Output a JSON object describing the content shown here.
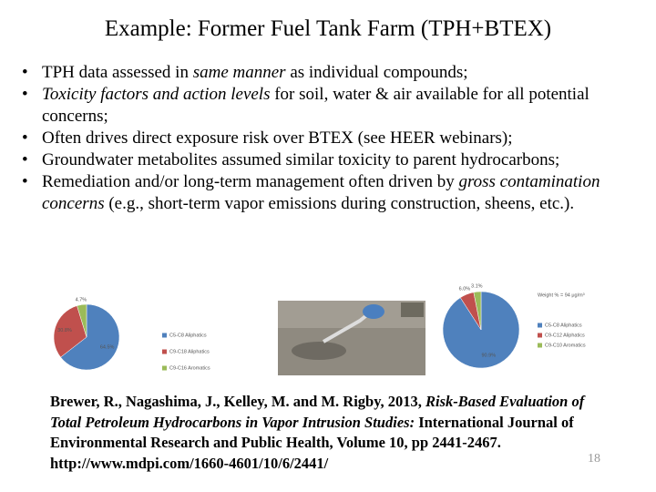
{
  "title": "Example: Former Fuel Tank Farm (TPH+BTEX)",
  "bullets": [
    [
      {
        "text": "TPH data assessed in ",
        "italic": false
      },
      {
        "text": "same manner",
        "italic": true
      },
      {
        "text": " as individual compounds;",
        "italic": false
      }
    ],
    [
      {
        "text": "Toxicity factors and action levels",
        "italic": true
      },
      {
        "text": " for soil, water & air available for all potential concerns;",
        "italic": false
      }
    ],
    [
      {
        "text": "Often drives direct exposure risk over BTEX (see HEER webinars);",
        "italic": false
      }
    ],
    [
      {
        "text": "Groundwater metabolites assumed similar toxicity to parent hydrocarbons;",
        "italic": false
      }
    ],
    [
      {
        "text": "Remediation and/or long-term management often driven by ",
        "italic": false
      },
      {
        "text": "gross contamination concerns",
        "italic": true
      },
      {
        "text": " (e.g., short-term vapor emissions during construction, sheens, etc.).",
        "italic": false
      }
    ]
  ],
  "pies": [
    {
      "values": [
        64.5,
        30.8,
        4.7
      ],
      "value_labels": [
        "64.5%",
        "30.8%",
        "4.7%"
      ],
      "legend": [
        "C5-C8 Aliphatics",
        "C9-C18 Aliphatics",
        "C9-C16 Aromatics"
      ],
      "colors": [
        "#4f81bd",
        "#c0504d",
        "#9bbb59"
      ]
    },
    {
      "title": "Weight % = 94 μg/m³",
      "values": [
        90.9,
        6.0,
        3.1
      ],
      "value_labels": [
        "90.9%",
        "6.0%",
        "3.1%"
      ],
      "legend": [
        "C5-C8 Aliphatics",
        "C9-C12 Aliphatics",
        "C9-C10 Aromatics"
      ],
      "colors": [
        "#4f81bd",
        "#c0504d",
        "#9bbb59"
      ]
    }
  ],
  "reference": [
    {
      "text": "Brewer, R., Nagashima, J., Kelley, M. and M. Rigby, 2013, ",
      "italic": false
    },
    {
      "text": "Risk-Based Evaluation of Total Petroleum Hydrocarbons in Vapor Intrusion Studies:",
      "italic": true
    },
    {
      "text": " International Journal of Environmental Research and Public Health, Volume 10, pp 2441-2467. http://www.mdpi.com/1660-4601/10/6/2441/",
      "italic": false
    }
  ],
  "page_number": "18"
}
